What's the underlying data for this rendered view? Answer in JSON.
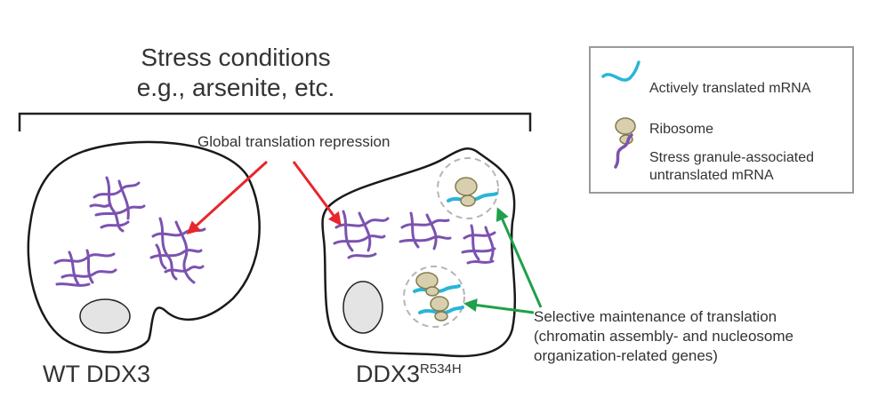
{
  "diagram": {
    "title_line1": "Stress conditions",
    "title_line2": "e.g., arsenite, etc.",
    "repression_label": "Global translation repression",
    "maintenance_label": {
      "line1": "Selective maintenance of translation",
      "line2": "(chromatin assembly- and nucleosome",
      "line3": "organization-related genes)"
    },
    "cells": {
      "wt_label": "WT DDX3",
      "mutant_base": "DDX3",
      "mutant_superscript": "R534H"
    },
    "legend": {
      "translated_mrna": "Actively translated mRNA",
      "ribosome": "Ribosome",
      "sg_mrna_line1": "Stress granule-associated",
      "sg_mrna_line2": "untranslated mRNA"
    },
    "colors": {
      "mrna_translated": "#29b5d8",
      "mrna_untranslated": "#7b52b0",
      "ribosome": "#d8cfae",
      "ribosome_outline": "#857a4d",
      "arrow_red": "#e8262c",
      "arrow_green": "#1fa04a",
      "nucleus": "#e4e4e4"
    }
  }
}
